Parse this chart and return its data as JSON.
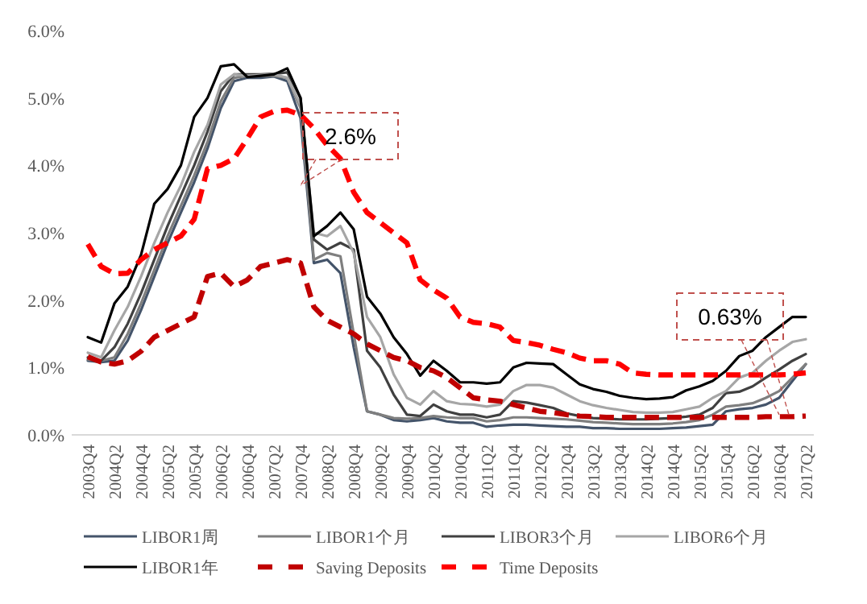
{
  "chart_data": {
    "type": "line",
    "categories": [
      "2003Q4",
      null,
      "2004Q2",
      null,
      "2004Q4",
      null,
      "2005Q2",
      null,
      "2005Q4",
      null,
      "2006Q2",
      null,
      "2006Q4",
      null,
      "2007Q2",
      null,
      "2007Q4",
      null,
      "2008Q2",
      null,
      "2008Q4",
      null,
      "2009Q2",
      null,
      "2009Q4",
      null,
      "2010Q2",
      null,
      "2010Q4",
      null,
      "2011Q2",
      null,
      "2011Q4",
      null,
      "2012Q2",
      null,
      "2012Q4",
      null,
      "2013Q2",
      null,
      "2013Q4",
      null,
      "2014Q2",
      null,
      "2014Q4",
      null,
      "2015Q2",
      null,
      "2015Q4",
      null,
      "2016Q2",
      null,
      "2016Q4",
      null,
      "2017Q2"
    ],
    "series": [
      {
        "name": "LIBOR1周",
        "color": "#44546a",
        "line_style": "solid",
        "values": [
          1.1,
          1.08,
          1.1,
          1.4,
          1.85,
          2.35,
          2.85,
          3.3,
          3.75,
          4.25,
          4.85,
          5.25,
          5.3,
          5.3,
          5.32,
          5.25,
          4.7,
          2.55,
          2.6,
          2.4,
          1.3,
          0.35,
          0.3,
          0.22,
          0.2,
          0.22,
          0.25,
          0.2,
          0.18,
          0.18,
          0.12,
          0.14,
          0.15,
          0.15,
          0.14,
          0.13,
          0.12,
          0.12,
          0.1,
          0.1,
          0.09,
          0.09,
          0.09,
          0.09,
          0.1,
          0.11,
          0.13,
          0.15,
          0.35,
          0.38,
          0.4,
          0.45,
          0.55,
          0.8,
          1.05
        ]
      },
      {
        "name": "LIBOR1个月",
        "color": "#7f7f7f",
        "line_style": "solid",
        "values": [
          1.12,
          1.1,
          1.15,
          1.5,
          1.95,
          2.45,
          2.95,
          3.4,
          3.85,
          4.35,
          4.95,
          5.3,
          5.33,
          5.33,
          5.33,
          5.3,
          4.85,
          2.6,
          2.7,
          2.65,
          1.5,
          0.35,
          0.3,
          0.25,
          0.24,
          0.25,
          0.28,
          0.26,
          0.25,
          0.25,
          0.2,
          0.22,
          0.26,
          0.26,
          0.25,
          0.24,
          0.23,
          0.21,
          0.19,
          0.18,
          0.17,
          0.16,
          0.16,
          0.16,
          0.17,
          0.19,
          0.22,
          0.3,
          0.42,
          0.44,
          0.47,
          0.55,
          0.65,
          0.85,
          1.05
        ]
      },
      {
        "name": "LIBOR3个月",
        "color": "#404040",
        "line_style": "solid",
        "values": [
          1.15,
          1.1,
          1.3,
          1.65,
          2.1,
          2.6,
          3.1,
          3.55,
          4.0,
          4.5,
          5.1,
          5.35,
          5.35,
          5.35,
          5.36,
          5.38,
          5.0,
          2.9,
          2.75,
          2.85,
          2.75,
          1.25,
          1.0,
          0.6,
          0.3,
          0.28,
          0.45,
          0.35,
          0.3,
          0.3,
          0.26,
          0.3,
          0.5,
          0.48,
          0.44,
          0.4,
          0.32,
          0.28,
          0.25,
          0.24,
          0.23,
          0.23,
          0.23,
          0.24,
          0.25,
          0.27,
          0.3,
          0.4,
          0.62,
          0.64,
          0.72,
          0.85,
          0.97,
          1.1,
          1.2
        ]
      },
      {
        "name": "LIBOR6个月",
        "color": "#a6a6a6",
        "line_style": "solid",
        "values": [
          1.22,
          1.15,
          1.55,
          1.9,
          2.35,
          2.85,
          3.3,
          3.7,
          4.2,
          4.6,
          5.2,
          5.35,
          5.33,
          5.34,
          5.35,
          5.3,
          4.9,
          3.0,
          2.95,
          3.1,
          2.7,
          1.75,
          1.45,
          0.9,
          0.55,
          0.45,
          0.65,
          0.5,
          0.46,
          0.45,
          0.42,
          0.45,
          0.65,
          0.74,
          0.74,
          0.7,
          0.6,
          0.5,
          0.44,
          0.4,
          0.37,
          0.34,
          0.33,
          0.33,
          0.34,
          0.38,
          0.42,
          0.55,
          0.65,
          0.85,
          0.92,
          1.1,
          1.25,
          1.38,
          1.42
        ]
      },
      {
        "name": "LIBOR1年",
        "color": "#000000",
        "line_style": "solid",
        "values": [
          1.45,
          1.37,
          1.95,
          2.2,
          2.67,
          3.43,
          3.65,
          4.0,
          4.72,
          5.0,
          5.47,
          5.5,
          5.31,
          5.33,
          5.35,
          5.44,
          5.0,
          2.95,
          3.1,
          3.3,
          3.05,
          2.05,
          1.8,
          1.45,
          1.2,
          0.88,
          1.1,
          0.95,
          0.78,
          0.78,
          0.76,
          0.78,
          1.0,
          1.07,
          1.06,
          1.05,
          0.9,
          0.75,
          0.68,
          0.64,
          0.58,
          0.55,
          0.53,
          0.54,
          0.56,
          0.66,
          0.72,
          0.8,
          0.95,
          1.17,
          1.25,
          1.45,
          1.6,
          1.75,
          1.75
        ]
      },
      {
        "name": "Saving Deposits",
        "color": "#c00000",
        "line_style": "dashed",
        "values": [
          1.16,
          1.08,
          1.05,
          1.1,
          1.24,
          1.45,
          1.55,
          1.65,
          1.75,
          2.35,
          2.4,
          2.2,
          2.3,
          2.5,
          2.55,
          2.6,
          2.55,
          1.9,
          1.7,
          1.6,
          1.5,
          1.35,
          1.25,
          1.15,
          1.1,
          1.0,
          0.95,
          0.85,
          0.7,
          0.55,
          0.52,
          0.5,
          0.45,
          0.4,
          0.35,
          0.33,
          0.3,
          0.28,
          0.27,
          0.26,
          0.26,
          0.26,
          0.26,
          0.26,
          0.26,
          0.26,
          0.26,
          0.26,
          0.26,
          0.26,
          0.26,
          0.27,
          0.27,
          0.27,
          0.28
        ]
      },
      {
        "name": "Time Deposits",
        "color": "#ff0000",
        "line_style": "dashed",
        "values": [
          2.83,
          2.5,
          2.39,
          2.4,
          2.6,
          2.75,
          2.85,
          2.95,
          3.2,
          3.95,
          4.0,
          4.1,
          4.4,
          4.72,
          4.8,
          4.82,
          4.75,
          4.55,
          4.3,
          4.1,
          3.6,
          3.3,
          3.15,
          3.0,
          2.85,
          2.3,
          2.15,
          2.03,
          1.75,
          1.67,
          1.65,
          1.6,
          1.4,
          1.37,
          1.33,
          1.27,
          1.22,
          1.14,
          1.1,
          1.1,
          1.05,
          0.92,
          0.9,
          0.89,
          0.89,
          0.89,
          0.89,
          0.89,
          0.89,
          0.89,
          0.89,
          0.89,
          0.89,
          0.9,
          0.92
        ]
      }
    ],
    "ylim": [
      0,
      6
    ],
    "yticks": [
      {
        "value": 0,
        "label": "0.0%"
      },
      {
        "value": 1,
        "label": "1.0%"
      },
      {
        "value": 2,
        "label": "2.0%"
      },
      {
        "value": 3,
        "label": "3.0%"
      },
      {
        "value": 4,
        "label": "4.0%"
      },
      {
        "value": 5,
        "label": "5.0%"
      },
      {
        "value": 6,
        "label": "6.0%"
      }
    ],
    "annotations": [
      {
        "text": "2.6%",
        "x": "2007Q4",
        "y": 3.7
      },
      {
        "text": "0.63%",
        "x": "2016Q4",
        "y": 0.3
      }
    ],
    "grid": false,
    "legend": "bottom"
  }
}
